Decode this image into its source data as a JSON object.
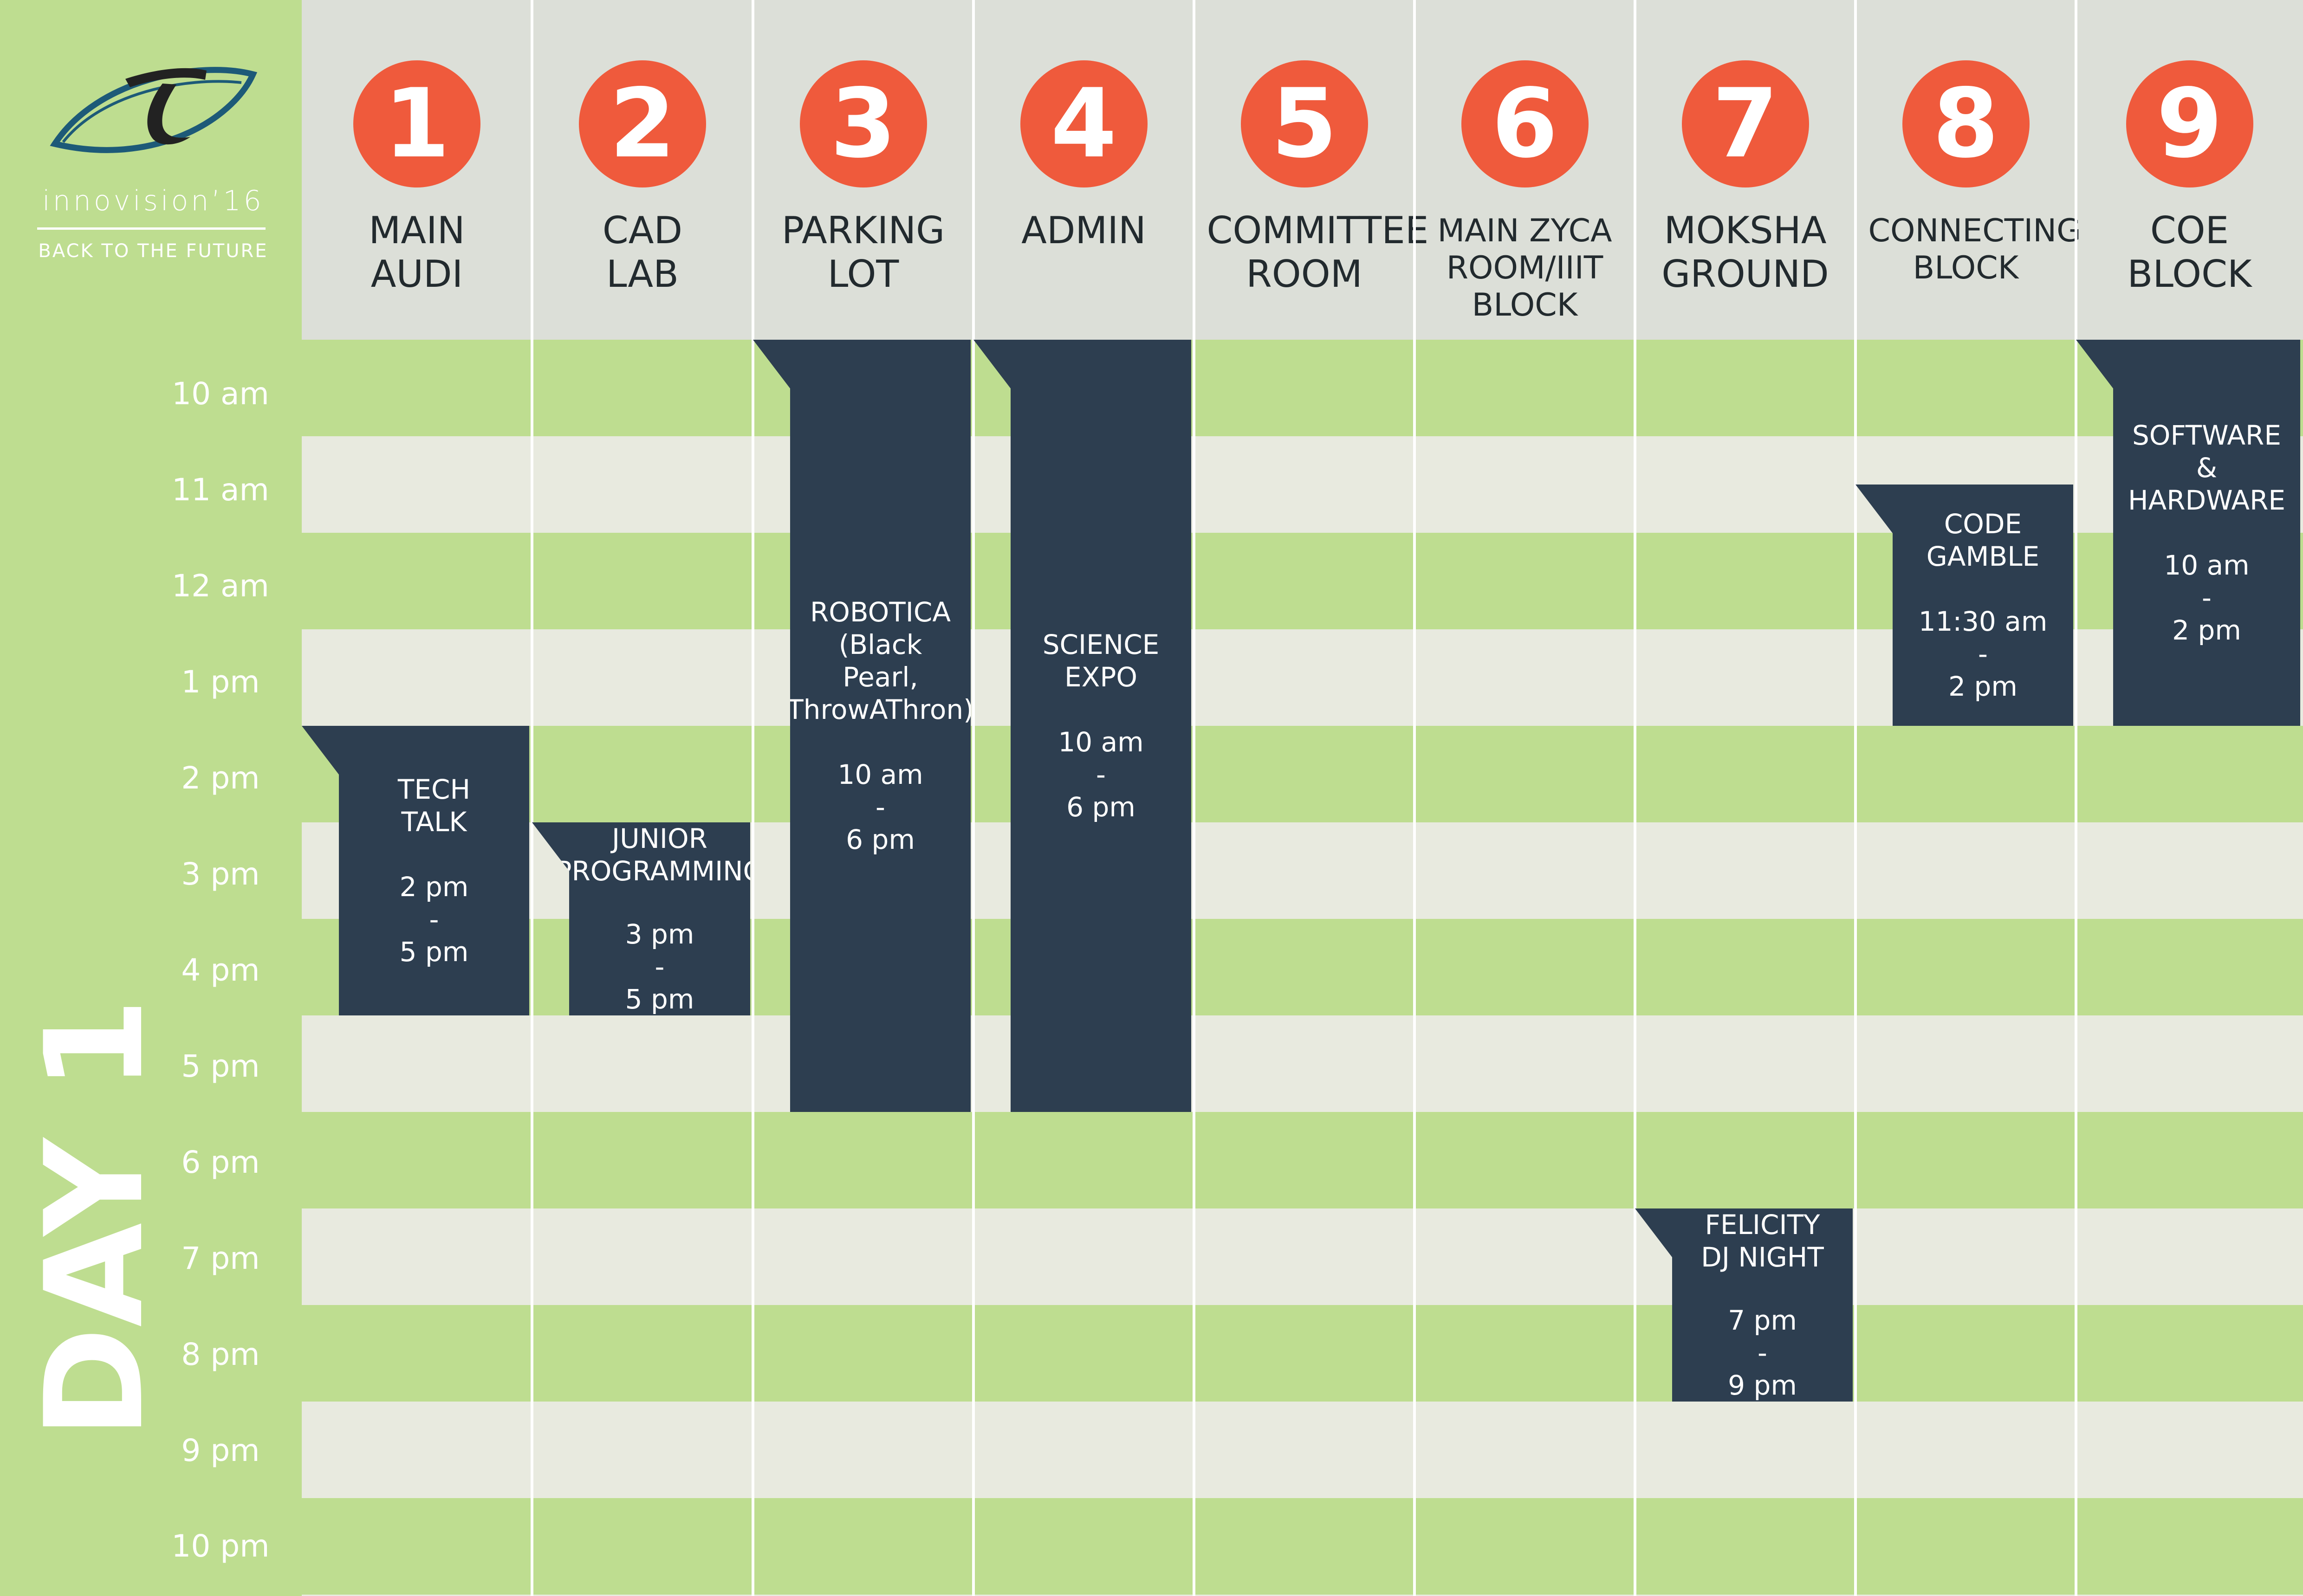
{
  "sidebar": {
    "brand": "innovision’16",
    "tagline": "BACK TO THE FUTURE",
    "day": "DAY 1"
  },
  "timeslots": [
    "10 am",
    "11 am",
    "12 am",
    "1 pm",
    "2 pm",
    "3 pm",
    "4 pm",
    "5 pm",
    "6 pm",
    "7 pm",
    "8 pm",
    "9 pm",
    "10 pm"
  ],
  "venues": [
    {
      "number": "1",
      "name": "MAIN\nAUDI"
    },
    {
      "number": "2",
      "name": "CAD\nLAB"
    },
    {
      "number": "3",
      "name": "PARKING\nLOT"
    },
    {
      "number": "4",
      "name": "ADMIN"
    },
    {
      "number": "5",
      "name": "COMMITTEE\nROOM"
    },
    {
      "number": "6",
      "name": "MAIN ZYCA\nROOM/IIIT\nBLOCK"
    },
    {
      "number": "7",
      "name": "MOKSHA\nGROUND"
    },
    {
      "number": "8",
      "name": "CONNECTING\nBLOCK"
    },
    {
      "number": "9",
      "name": "COE\nBLOCK"
    }
  ],
  "events": [
    {
      "venue": "1",
      "title": "TECH\nTALK",
      "time": "2 pm\n-\n5 pm",
      "start": "2 pm",
      "end": "5 pm"
    },
    {
      "venue": "2",
      "title": "JUNIOR\nPROGRAMMING",
      "time": "3 pm\n-\n5   pm",
      "start": "3 pm",
      "end": "5 pm"
    },
    {
      "venue": "3",
      "title": "ROBOTICA\n(Black\nPearl,\nThrowAThron)",
      "time": "10 am\n-\n6 pm",
      "start": "10 am",
      "end": "6 pm"
    },
    {
      "venue": "4",
      "title": "SCIENCE\nEXPO",
      "time": "10 am\n-\n6 pm",
      "start": "10 am",
      "end": "6 pm"
    },
    {
      "venue": "7",
      "title": "FELICITY\nDJ NIGHT",
      "time": "7 pm\n-\n9 pm",
      "start": "7 pm",
      "end": "9 pm"
    },
    {
      "venue": "8",
      "title": "CODE\nGAMBLE",
      "time": "11:30 am\n-\n2 pm",
      "start": "11:30 am",
      "end": "2 pm"
    },
    {
      "venue": "9",
      "title": "SOFTWARE\n&\nHARDWARE",
      "time": "10 am\n-\n2 pm",
      "start": "10 am",
      "end": "2 pm"
    }
  ],
  "colors": {
    "green": "#bedd90",
    "stripe_light": "#e8eadf",
    "header": "#dcdfd8",
    "badge": "#ef5a3c",
    "event": "#2d3e50",
    "text": "#222a2e"
  },
  "icons": [
    "eye-logo-icon"
  ]
}
